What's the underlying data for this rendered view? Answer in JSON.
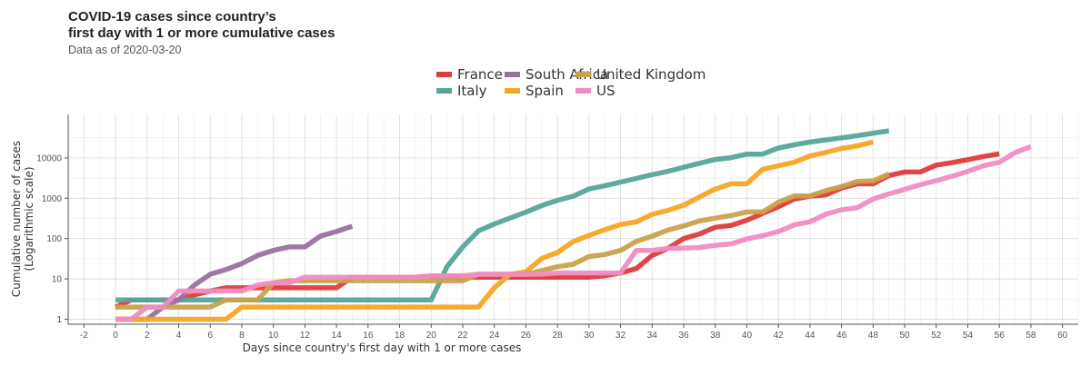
{
  "chart_data": {
    "type": "line",
    "title_line1": "COVID-19 cases since country’s",
    "title_line2": "first day with 1 or more cumulative cases",
    "subtitle": "Data as of 2020-03-20",
    "xlabel": "Days since country's first day with 1 or more cases",
    "ylabel_line1": "Cumulative number of cases",
    "ylabel_line2": "(Logarithmic scale)",
    "xlim": [
      -3,
      61
    ],
    "ylim": [
      0.75,
      120000
    ],
    "y_scale": "log10",
    "x_ticks": [
      -2,
      0,
      2,
      4,
      6,
      8,
      10,
      12,
      14,
      16,
      18,
      20,
      22,
      24,
      26,
      28,
      30,
      32,
      34,
      36,
      38,
      40,
      42,
      44,
      46,
      48,
      50,
      52,
      54,
      56,
      58,
      60
    ],
    "y_ticks": [
      1,
      10,
      100,
      1000,
      10000
    ],
    "grid": true,
    "legend_position": "top",
    "series": [
      {
        "name": "France",
        "color": "#e03b3b",
        "points": [
          [
            0,
            2
          ],
          [
            1,
            3
          ],
          [
            2,
            3
          ],
          [
            3,
            3
          ],
          [
            4,
            3
          ],
          [
            5,
            4
          ],
          [
            6,
            5
          ],
          [
            7,
            6
          ],
          [
            8,
            6
          ],
          [
            9,
            6
          ],
          [
            10,
            6
          ],
          [
            11,
            6
          ],
          [
            12,
            6
          ],
          [
            13,
            6
          ],
          [
            14,
            6
          ],
          [
            15,
            11
          ],
          [
            16,
            11
          ],
          [
            17,
            11
          ],
          [
            18,
            11
          ],
          [
            19,
            11
          ],
          [
            20,
            11
          ],
          [
            21,
            11
          ],
          [
            22,
            11
          ],
          [
            23,
            11
          ],
          [
            24,
            11
          ],
          [
            25,
            11
          ],
          [
            26,
            11
          ],
          [
            27,
            11
          ],
          [
            28,
            11
          ],
          [
            29,
            11
          ],
          [
            30,
            11
          ],
          [
            31,
            12
          ],
          [
            32,
            14
          ],
          [
            33,
            18
          ],
          [
            34,
            38
          ],
          [
            35,
            57
          ],
          [
            36,
            100
          ],
          [
            37,
            130
          ],
          [
            38,
            190
          ],
          [
            39,
            212
          ],
          [
            40,
            285
          ],
          [
            41,
            420
          ],
          [
            42,
            613
          ],
          [
            43,
            949
          ],
          [
            44,
            1126
          ],
          [
            45,
            1209
          ],
          [
            46,
            1784
          ],
          [
            47,
            2281
          ],
          [
            48,
            2281
          ],
          [
            49,
            3661
          ],
          [
            50,
            4469
          ],
          [
            51,
            4499
          ],
          [
            52,
            6633
          ],
          [
            53,
            7652
          ],
          [
            54,
            9043
          ],
          [
            55,
            10871
          ],
          [
            56,
            12612
          ]
        ]
      },
      {
        "name": "Italy",
        "color": "#55a59a",
        "points": [
          [
            0,
            3
          ],
          [
            19,
            3
          ],
          [
            20,
            3
          ],
          [
            21,
            20
          ],
          [
            22,
            62
          ],
          [
            23,
            155
          ],
          [
            24,
            229
          ],
          [
            25,
            322
          ],
          [
            26,
            453
          ],
          [
            27,
            655
          ],
          [
            28,
            888
          ],
          [
            29,
            1128
          ],
          [
            30,
            1694
          ],
          [
            31,
            2036
          ],
          [
            32,
            2502
          ],
          [
            33,
            3089
          ],
          [
            34,
            3858
          ],
          [
            35,
            4636
          ],
          [
            36,
            5883
          ],
          [
            37,
            7375
          ],
          [
            38,
            9172
          ],
          [
            39,
            10149
          ],
          [
            40,
            12462
          ],
          [
            41,
            12462
          ],
          [
            42,
            17660
          ],
          [
            43,
            21157
          ],
          [
            44,
            24747
          ],
          [
            45,
            27980
          ],
          [
            46,
            31506
          ],
          [
            47,
            35713
          ],
          [
            48,
            41035
          ],
          [
            49,
            47021
          ]
        ]
      },
      {
        "name": "South Africa",
        "color": "#98729f",
        "points": [
          [
            0,
            1
          ],
          [
            1,
            1
          ],
          [
            2,
            1
          ],
          [
            3,
            2
          ],
          [
            4,
            3
          ],
          [
            5,
            7
          ],
          [
            6,
            13
          ],
          [
            7,
            17
          ],
          [
            8,
            24
          ],
          [
            9,
            38
          ],
          [
            10,
            51
          ],
          [
            11,
            62
          ],
          [
            12,
            62
          ],
          [
            13,
            116
          ],
          [
            14,
            150
          ],
          [
            15,
            202
          ]
        ]
      },
      {
        "name": "Spain",
        "color": "#f5a623",
        "points": [
          [
            0,
            1
          ],
          [
            6,
            1
          ],
          [
            7,
            1
          ],
          [
            8,
            2
          ],
          [
            22,
            2
          ],
          [
            23,
            2
          ],
          [
            24,
            6
          ],
          [
            25,
            13
          ],
          [
            26,
            15
          ],
          [
            27,
            32
          ],
          [
            28,
            45
          ],
          [
            29,
            84
          ],
          [
            30,
            120
          ],
          [
            31,
            165
          ],
          [
            32,
            222
          ],
          [
            33,
            259
          ],
          [
            34,
            400
          ],
          [
            35,
            500
          ],
          [
            36,
            673
          ],
          [
            37,
            1073
          ],
          [
            38,
            1695
          ],
          [
            39,
            2277
          ],
          [
            40,
            2277
          ],
          [
            41,
            5232
          ],
          [
            42,
            6391
          ],
          [
            43,
            7798
          ],
          [
            44,
            11178
          ],
          [
            45,
            13716
          ],
          [
            46,
            17147
          ],
          [
            47,
            19980
          ],
          [
            48,
            24926
          ]
        ]
      },
      {
        "name": "United Kingdom",
        "color": "#c9a24c",
        "points": [
          [
            0,
            2
          ],
          [
            6,
            2
          ],
          [
            7,
            3
          ],
          [
            8,
            3
          ],
          [
            9,
            3
          ],
          [
            10,
            8
          ],
          [
            11,
            9
          ],
          [
            12,
            9
          ],
          [
            22,
            9
          ],
          [
            23,
            13
          ],
          [
            24,
            13
          ],
          [
            25,
            13
          ],
          [
            26,
            13
          ],
          [
            27,
            16
          ],
          [
            28,
            20
          ],
          [
            29,
            23
          ],
          [
            30,
            36
          ],
          [
            31,
            40
          ],
          [
            32,
            51
          ],
          [
            33,
            85
          ],
          [
            34,
            115
          ],
          [
            35,
            163
          ],
          [
            36,
            206
          ],
          [
            37,
            273
          ],
          [
            38,
            321
          ],
          [
            39,
            373
          ],
          [
            40,
            456
          ],
          [
            41,
            456
          ],
          [
            42,
            798
          ],
          [
            43,
            1140
          ],
          [
            44,
            1140
          ],
          [
            45,
            1543
          ],
          [
            46,
            1950
          ],
          [
            47,
            2626
          ],
          [
            48,
            2689
          ],
          [
            49,
            3983
          ]
        ]
      },
      {
        "name": "US",
        "color": "#f08cc4",
        "points": [
          [
            0,
            1
          ],
          [
            1,
            1
          ],
          [
            2,
            2
          ],
          [
            3,
            2
          ],
          [
            4,
            5
          ],
          [
            5,
            5
          ],
          [
            6,
            5
          ],
          [
            7,
            5
          ],
          [
            8,
            5
          ],
          [
            9,
            7
          ],
          [
            10,
            8
          ],
          [
            11,
            8
          ],
          [
            12,
            11
          ],
          [
            13,
            11
          ],
          [
            14,
            11
          ],
          [
            15,
            11
          ],
          [
            16,
            11
          ],
          [
            17,
            11
          ],
          [
            18,
            11
          ],
          [
            19,
            11
          ],
          [
            20,
            12
          ],
          [
            21,
            12
          ],
          [
            22,
            12
          ],
          [
            23,
            13
          ],
          [
            24,
            13
          ],
          [
            25,
            13
          ],
          [
            26,
            13
          ],
          [
            27,
            13
          ],
          [
            28,
            14
          ],
          [
            29,
            14
          ],
          [
            30,
            14
          ],
          [
            31,
            14
          ],
          [
            32,
            14
          ],
          [
            33,
            51
          ],
          [
            34,
            51
          ],
          [
            35,
            57
          ],
          [
            36,
            58
          ],
          [
            37,
            60
          ],
          [
            38,
            68
          ],
          [
            39,
            74
          ],
          [
            40,
            98
          ],
          [
            41,
            118
          ],
          [
            42,
            149
          ],
          [
            43,
            217
          ],
          [
            44,
            262
          ],
          [
            45,
            402
          ],
          [
            46,
            518
          ],
          [
            47,
            583
          ],
          [
            48,
            959
          ],
          [
            49,
            1281
          ],
          [
            50,
            1663
          ],
          [
            51,
            2179
          ],
          [
            52,
            2726
          ],
          [
            53,
            3499
          ],
          [
            54,
            4632
          ],
          [
            55,
            6421
          ],
          [
            56,
            7786
          ],
          [
            57,
            13680
          ],
          [
            58,
            19101
          ]
        ]
      }
    ]
  }
}
